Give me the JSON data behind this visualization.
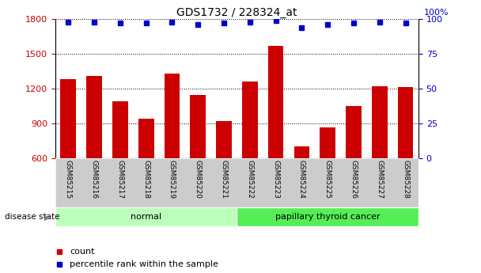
{
  "title": "GDS1732 / 228324_at",
  "samples": [
    "GSM85215",
    "GSM85216",
    "GSM85217",
    "GSM85218",
    "GSM85219",
    "GSM85220",
    "GSM85221",
    "GSM85222",
    "GSM85223",
    "GSM85224",
    "GSM85225",
    "GSM85226",
    "GSM85227",
    "GSM85228"
  ],
  "counts": [
    1280,
    1310,
    1090,
    940,
    1330,
    1145,
    920,
    1265,
    1570,
    700,
    870,
    1050,
    1220,
    1215
  ],
  "percentiles": [
    98,
    98,
    97,
    97,
    98,
    96,
    97,
    98,
    99,
    94,
    96,
    97,
    98,
    97
  ],
  "normal_indices": [
    0,
    1,
    2,
    3,
    4,
    5,
    6
  ],
  "cancer_indices": [
    7,
    8,
    9,
    10,
    11,
    12,
    13
  ],
  "ylim_left": [
    600,
    1800
  ],
  "ylim_right": [
    0,
    100
  ],
  "yticks_left": [
    600,
    900,
    1200,
    1500,
    1800
  ],
  "yticks_right": [
    0,
    25,
    50,
    75,
    100
  ],
  "bar_color": "#cc0000",
  "dot_color": "#0000cc",
  "normal_bg": "#bbffbb",
  "cancer_bg": "#55ee55",
  "tick_area_bg": "#cccccc",
  "normal_label": "normal",
  "cancer_label": "papillary thyroid cancer",
  "count_legend": "count",
  "pct_legend": "percentile rank within the sample",
  "right_axis_label": "100%"
}
